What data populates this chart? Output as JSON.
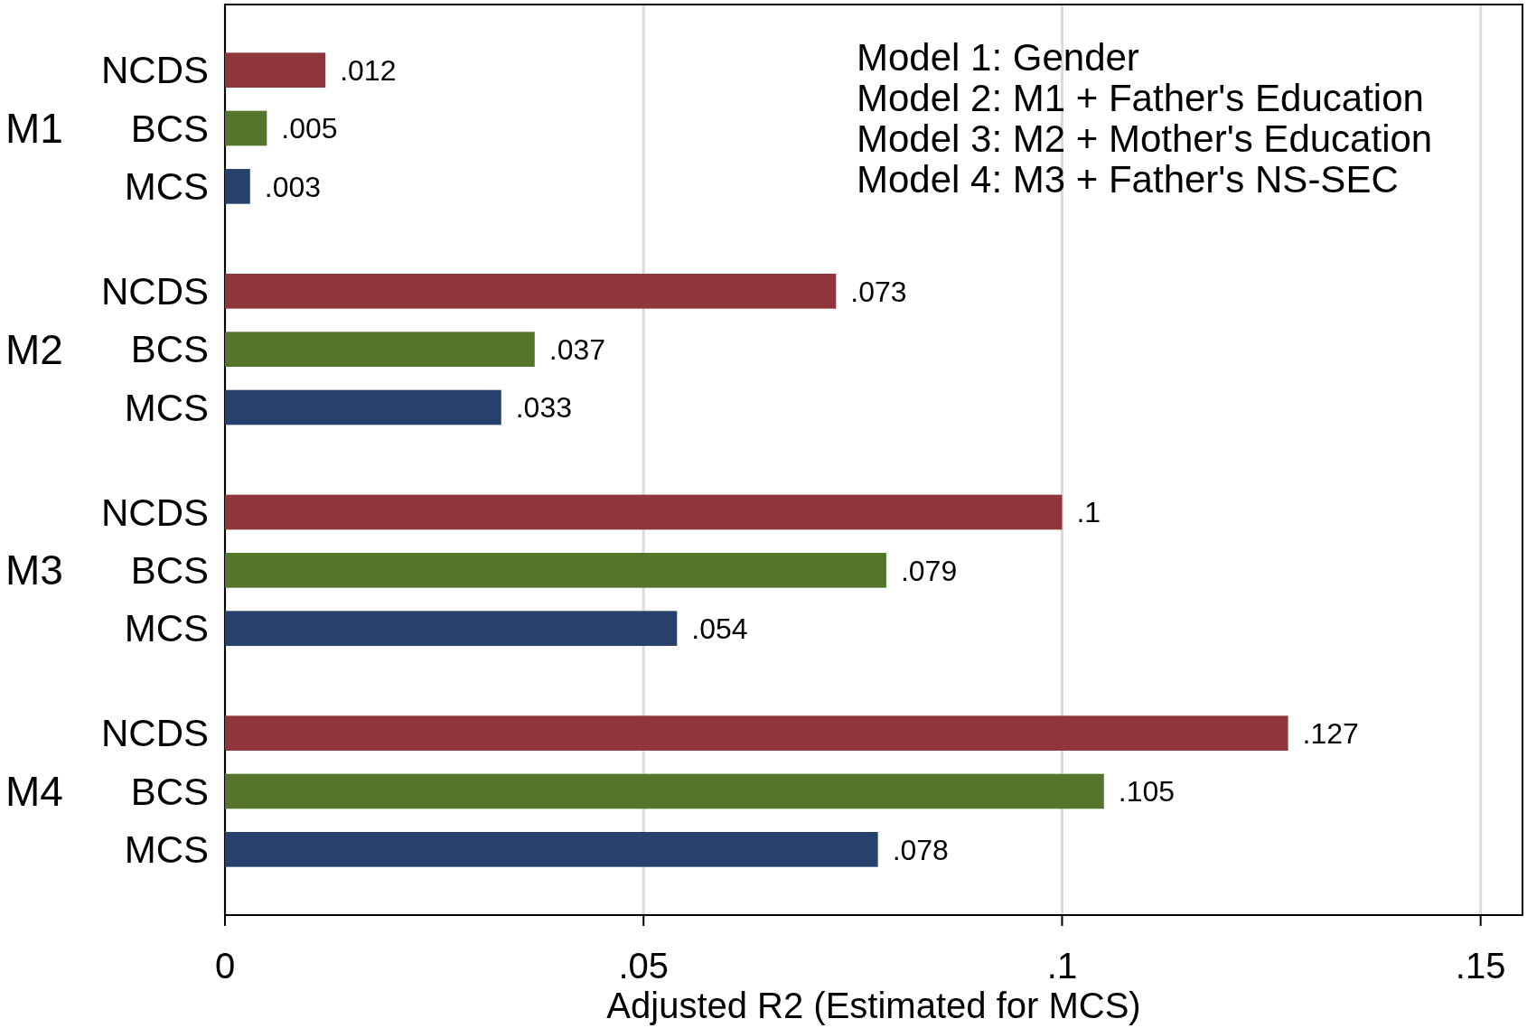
{
  "chart_data": {
    "type": "bar",
    "orientation": "horizontal",
    "categories": [
      "M1",
      "M2",
      "M3",
      "M4"
    ],
    "series": [
      {
        "name": "NCDS",
        "color": "#90353b",
        "values": [
          0.012,
          0.073,
          0.1,
          0.127
        ],
        "value_labels": [
          ".012",
          ".073",
          ".1",
          ".127"
        ]
      },
      {
        "name": "BCS",
        "color": "#55752f",
        "values": [
          0.005,
          0.037,
          0.079,
          0.105
        ],
        "value_labels": [
          ".005",
          ".037",
          ".079",
          ".105"
        ]
      },
      {
        "name": "MCS",
        "color": "#26416c",
        "values": [
          0.003,
          0.033,
          0.054,
          0.078
        ],
        "value_labels": [
          ".003",
          ".033",
          ".054",
          ".078"
        ]
      }
    ],
    "xlabel": "Adjusted R2 (Estimated for MCS)",
    "xlim": [
      0,
      0.155
    ],
    "xticks": [
      {
        "value": 0,
        "label": "0"
      },
      {
        "value": 0.05,
        "label": ".05"
      },
      {
        "value": 0.1,
        "label": ".1"
      },
      {
        "value": 0.15,
        "label": ".15"
      }
    ],
    "grid": "x",
    "legend": false,
    "annotations": [
      "Model 1: Gender",
      "Model 2: M1 + Father's Education",
      "Model 3: M2 + Mother's Education",
      "Model 4: M3 + Father's NS-SEC"
    ]
  }
}
